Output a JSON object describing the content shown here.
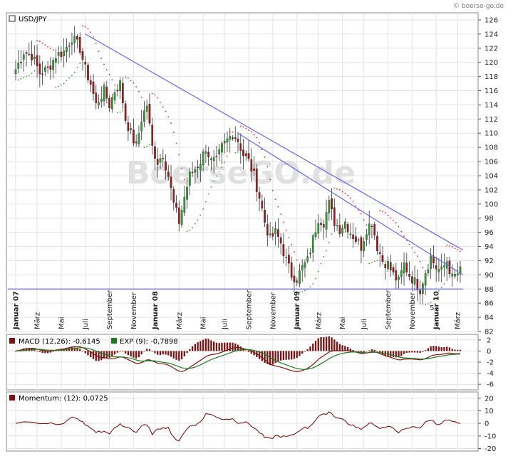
{
  "header": {
    "copyright": "© boerse-go.de"
  },
  "chart_data": [
    {
      "id": "price",
      "type": "candlestick",
      "title": "USD/JPY",
      "watermark": "BoerseGO.de",
      "ylim": [
        82,
        127
      ],
      "yticks": [
        82,
        84,
        86,
        88,
        90,
        92,
        94,
        96,
        98,
        100,
        102,
        104,
        106,
        108,
        110,
        112,
        114,
        116,
        118,
        120,
        122,
        124,
        126
      ],
      "xlabels": [
        {
          "label": "Januar 07",
          "bold": true,
          "week": 0
        },
        {
          "label": "März",
          "bold": false,
          "week": 8
        },
        {
          "label": "Mai",
          "bold": false,
          "week": 17
        },
        {
          "label": "Juli",
          "bold": false,
          "week": 26
        },
        {
          "label": "September",
          "bold": false,
          "week": 35
        },
        {
          "label": "November",
          "bold": false,
          "week": 44
        },
        {
          "label": "Januar 08",
          "bold": true,
          "week": 52
        },
        {
          "label": "März",
          "bold": false,
          "week": 61
        },
        {
          "label": "Mai",
          "bold": false,
          "week": 70
        },
        {
          "label": "Juli",
          "bold": false,
          "week": 78
        },
        {
          "label": "September",
          "bold": false,
          "week": 87
        },
        {
          "label": "November",
          "bold": false,
          "week": 96
        },
        {
          "label": "Januar 09",
          "bold": true,
          "week": 105
        },
        {
          "label": "März",
          "bold": false,
          "week": 113
        },
        {
          "label": "Mai",
          "bold": false,
          "week": 122
        },
        {
          "label": "Juli",
          "bold": false,
          "week": 130
        },
        {
          "label": "September",
          "bold": false,
          "week": 139
        },
        {
          "label": "November",
          "bold": false,
          "week": 148
        },
        {
          "label": "Januar 10",
          "bold": true,
          "week": 157
        },
        {
          "label": "März",
          "bold": false,
          "week": 165
        }
      ],
      "weeks": 167,
      "close_anchors": [
        [
          0,
          119
        ],
        [
          3,
          121.5
        ],
        [
          6,
          121
        ],
        [
          9,
          118.5
        ],
        [
          12,
          119
        ],
        [
          15,
          121
        ],
        [
          18,
          121.5
        ],
        [
          21,
          123.5
        ],
        [
          24,
          122
        ],
        [
          26,
          119
        ],
        [
          28,
          117
        ],
        [
          30,
          114
        ],
        [
          33,
          116
        ],
        [
          35,
          114
        ],
        [
          37,
          116
        ],
        [
          39,
          117
        ],
        [
          41,
          112
        ],
        [
          43,
          110
        ],
        [
          45,
          108
        ],
        [
          47,
          112
        ],
        [
          49,
          114
        ],
        [
          51,
          108
        ],
        [
          53,
          106
        ],
        [
          55,
          107
        ],
        [
          57,
          104
        ],
        [
          59,
          100
        ],
        [
          61,
          97.5
        ],
        [
          63,
          101
        ],
        [
          65,
          104
        ],
        [
          67,
          105
        ],
        [
          69,
          106
        ],
        [
          71,
          108
        ],
        [
          73,
          106
        ],
        [
          75,
          106
        ],
        [
          77,
          108
        ],
        [
          79,
          109
        ],
        [
          81,
          110
        ],
        [
          83,
          109
        ],
        [
          85,
          107
        ],
        [
          87,
          106
        ],
        [
          89,
          104
        ],
        [
          91,
          101
        ],
        [
          93,
          97.5
        ],
        [
          95,
          95
        ],
        [
          97,
          96
        ],
        [
          99,
          94.5
        ],
        [
          101,
          92
        ],
        [
          103,
          90
        ],
        [
          105,
          89.5
        ],
        [
          107,
          91
        ],
        [
          109,
          92
        ],
        [
          111,
          95
        ],
        [
          113,
          98
        ],
        [
          115,
          97.5
        ],
        [
          117,
          100
        ],
        [
          119,
          97.5
        ],
        [
          121,
          96.5
        ],
        [
          123,
          97.5
        ],
        [
          125,
          96
        ],
        [
          127,
          95
        ],
        [
          129,
          94
        ],
        [
          131,
          96.5
        ],
        [
          133,
          97.5
        ],
        [
          135,
          94
        ],
        [
          137,
          92
        ],
        [
          139,
          91.5
        ],
        [
          141,
          90
        ],
        [
          143,
          89
        ],
        [
          145,
          91.5
        ],
        [
          147,
          90
        ],
        [
          149,
          89
        ],
        [
          151,
          88
        ],
        [
          153,
          90.5
        ],
        [
          155,
          92.5
        ],
        [
          157,
          91
        ],
        [
          159,
          90.5
        ],
        [
          161,
          92
        ],
        [
          163,
          89.5
        ],
        [
          166,
          90.5
        ]
      ],
      "overlays": [
        {
          "name": "trendline-1",
          "color": "#6666ee",
          "from": {
            "week": 26,
            "price": 124
          },
          "to": {
            "week": 167,
            "price": 93.5
          }
        },
        {
          "name": "trendline-2",
          "color": "#6666ee",
          "from": {
            "week": 83,
            "price": 110
          },
          "to": {
            "week": 167,
            "price": 90
          }
        },
        {
          "name": "support-line",
          "color": "#6666ee",
          "from": {
            "week": -3,
            "price": 88
          },
          "to": {
            "week": 167,
            "price": 88
          }
        }
      ],
      "annotation": {
        "label": "5",
        "week": 153,
        "price": 85.3
      }
    },
    {
      "id": "macd",
      "type": "macd",
      "legend": [
        {
          "label": "MACD (12,26): -0,6145",
          "color": "#7a1414"
        },
        {
          "label": "EXP (9): -0,7898",
          "color": "#1e7a1e"
        }
      ],
      "ylim": [
        -7,
        3
      ],
      "yticks": [
        2,
        0,
        -2,
        -4,
        -6
      ]
    },
    {
      "id": "momentum",
      "type": "line",
      "legend": [
        {
          "label": "Momentum: (12): 0,0725",
          "color": "#7a1414"
        }
      ],
      "ylim": [
        -22,
        25
      ],
      "yticks": [
        20,
        10,
        0,
        -10,
        -20
      ]
    }
  ]
}
